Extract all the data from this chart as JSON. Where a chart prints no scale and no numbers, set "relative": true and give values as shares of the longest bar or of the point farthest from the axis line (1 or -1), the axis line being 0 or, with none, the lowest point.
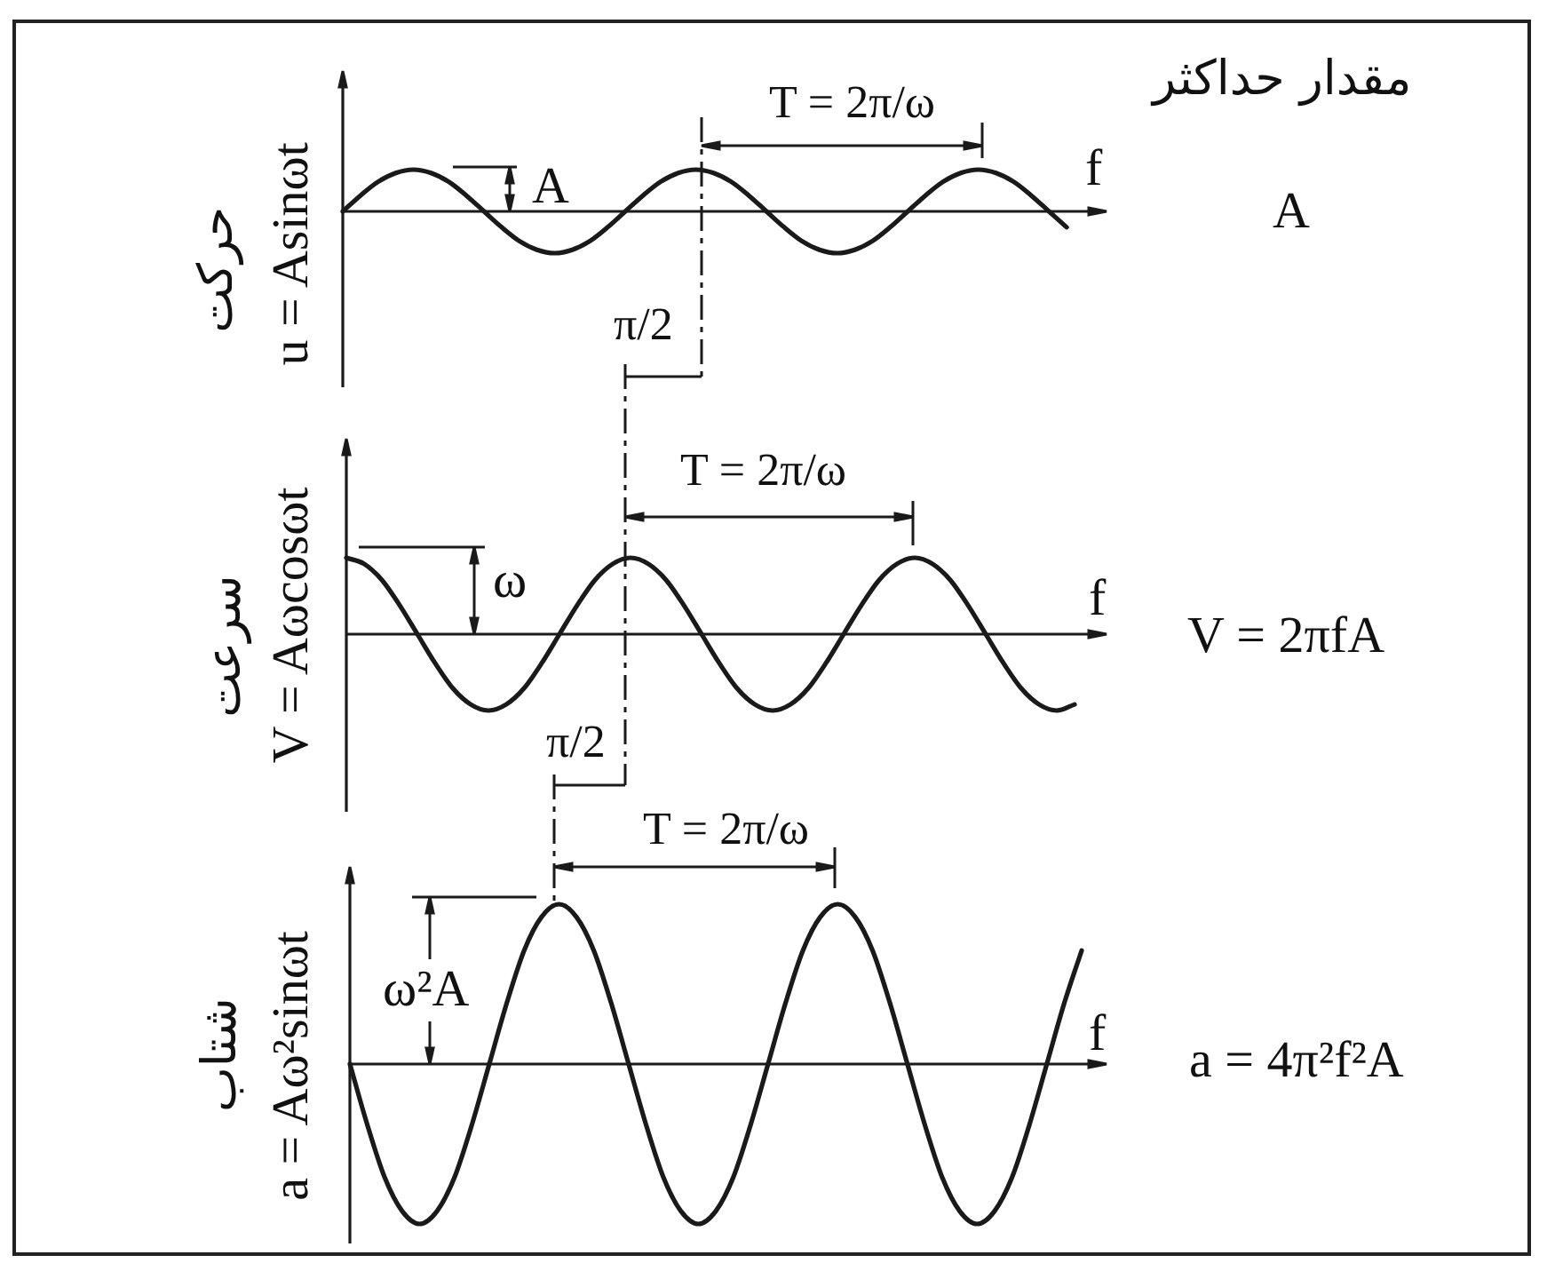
{
  "chart_data": [
    {
      "type": "line",
      "title": "حرکت",
      "ylabel": "u = Asinωt",
      "xlabel": "f",
      "relative": true,
      "marker": "none",
      "categories": [
        null,
        null,
        null,
        null,
        null,
        null,
        null,
        null,
        null,
        null,
        null,
        null,
        null,
        null,
        null,
        null,
        null,
        null,
        null,
        null,
        null,
        null,
        null,
        null,
        null,
        null,
        null,
        null,
        null,
        null,
        null,
        null,
        null,
        null,
        null,
        null,
        null,
        null,
        null,
        null,
        null,
        null
      ],
      "series": [
        {
          "color": "#1a1a1a",
          "values": [
            0,
            0.38,
            0.71,
            0.92,
            1,
            0.92,
            0.71,
            0.38,
            0,
            -0.38,
            -0.71,
            -0.92,
            -1,
            -0.92,
            -0.71,
            -0.38,
            0,
            0.38,
            0.71,
            0.92,
            1,
            0.92,
            0.71,
            0.38,
            0,
            -0.38,
            -0.71,
            -0.92,
            -1,
            -0.92,
            -0.71,
            -0.38,
            0,
            0.38,
            0.71,
            0.92,
            1,
            0.92,
            0.71,
            0.38,
            0,
            -0.38
          ]
        }
      ],
      "annotations": [
        "مقدار حداکثر",
        "A",
        "A",
        "T = 2π/ω",
        "π/2"
      ]
    },
    {
      "type": "line",
      "title": "سرعت",
      "ylabel": "V = Aωcosωt",
      "xlabel": "f",
      "relative": true,
      "marker": "none",
      "categories": [
        null,
        null,
        null,
        null,
        null,
        null,
        null,
        null,
        null,
        null,
        null,
        null,
        null,
        null,
        null,
        null,
        null,
        null,
        null,
        null,
        null,
        null,
        null,
        null,
        null,
        null,
        null,
        null,
        null,
        null,
        null,
        null,
        null,
        null,
        null,
        null,
        null,
        null,
        null,
        null,
        null,
        null
      ],
      "series": [
        {
          "color": "#1a1a1a",
          "values": [
            1,
            0.92,
            0.71,
            0.38,
            0,
            -0.38,
            -0.71,
            -0.92,
            -1,
            -0.92,
            -0.71,
            -0.38,
            0,
            0.38,
            0.71,
            0.92,
            1,
            0.92,
            0.71,
            0.38,
            0,
            -0.38,
            -0.71,
            -0.92,
            -1,
            -0.92,
            -0.71,
            -0.38,
            0,
            0.38,
            0.71,
            0.92,
            1,
            0.92,
            0.71,
            0.38,
            0,
            -0.38,
            -0.71,
            -0.92,
            -1,
            -0.92
          ]
        }
      ],
      "annotations": [
        "V = 2πfA",
        "ω",
        "T = 2π/ω",
        "π/2"
      ]
    },
    {
      "type": "line",
      "title": "شتاب",
      "ylabel": "a = Aω²sinωt",
      "xlabel": "f",
      "relative": true,
      "marker": "none",
      "categories": [
        null,
        null,
        null,
        null,
        null,
        null,
        null,
        null,
        null,
        null,
        null,
        null,
        null,
        null,
        null,
        null,
        null,
        null,
        null,
        null,
        null,
        null,
        null,
        null,
        null,
        null,
        null,
        null,
        null,
        null,
        null,
        null,
        null,
        null,
        null,
        null,
        null,
        null,
        null,
        null,
        null,
        null,
        null
      ],
      "series": [
        {
          "color": "#1a1a1a",
          "values": [
            0,
            -0.38,
            -0.71,
            -0.92,
            -1,
            -0.92,
            -0.71,
            -0.38,
            0,
            0.38,
            0.71,
            0.92,
            1,
            0.92,
            0.71,
            0.38,
            0,
            -0.38,
            -0.71,
            -0.92,
            -1,
            -0.92,
            -0.71,
            -0.38,
            0,
            0.38,
            0.71,
            0.92,
            1,
            0.92,
            0.71,
            0.38,
            0,
            -0.38,
            -0.71,
            -0.92,
            -1,
            -0.92,
            -0.71,
            -0.38,
            0,
            0.38,
            0.71
          ]
        }
      ],
      "annotations": [
        "a = 4π²f²A",
        "ω²A",
        "T = 2π/ω"
      ]
    }
  ]
}
